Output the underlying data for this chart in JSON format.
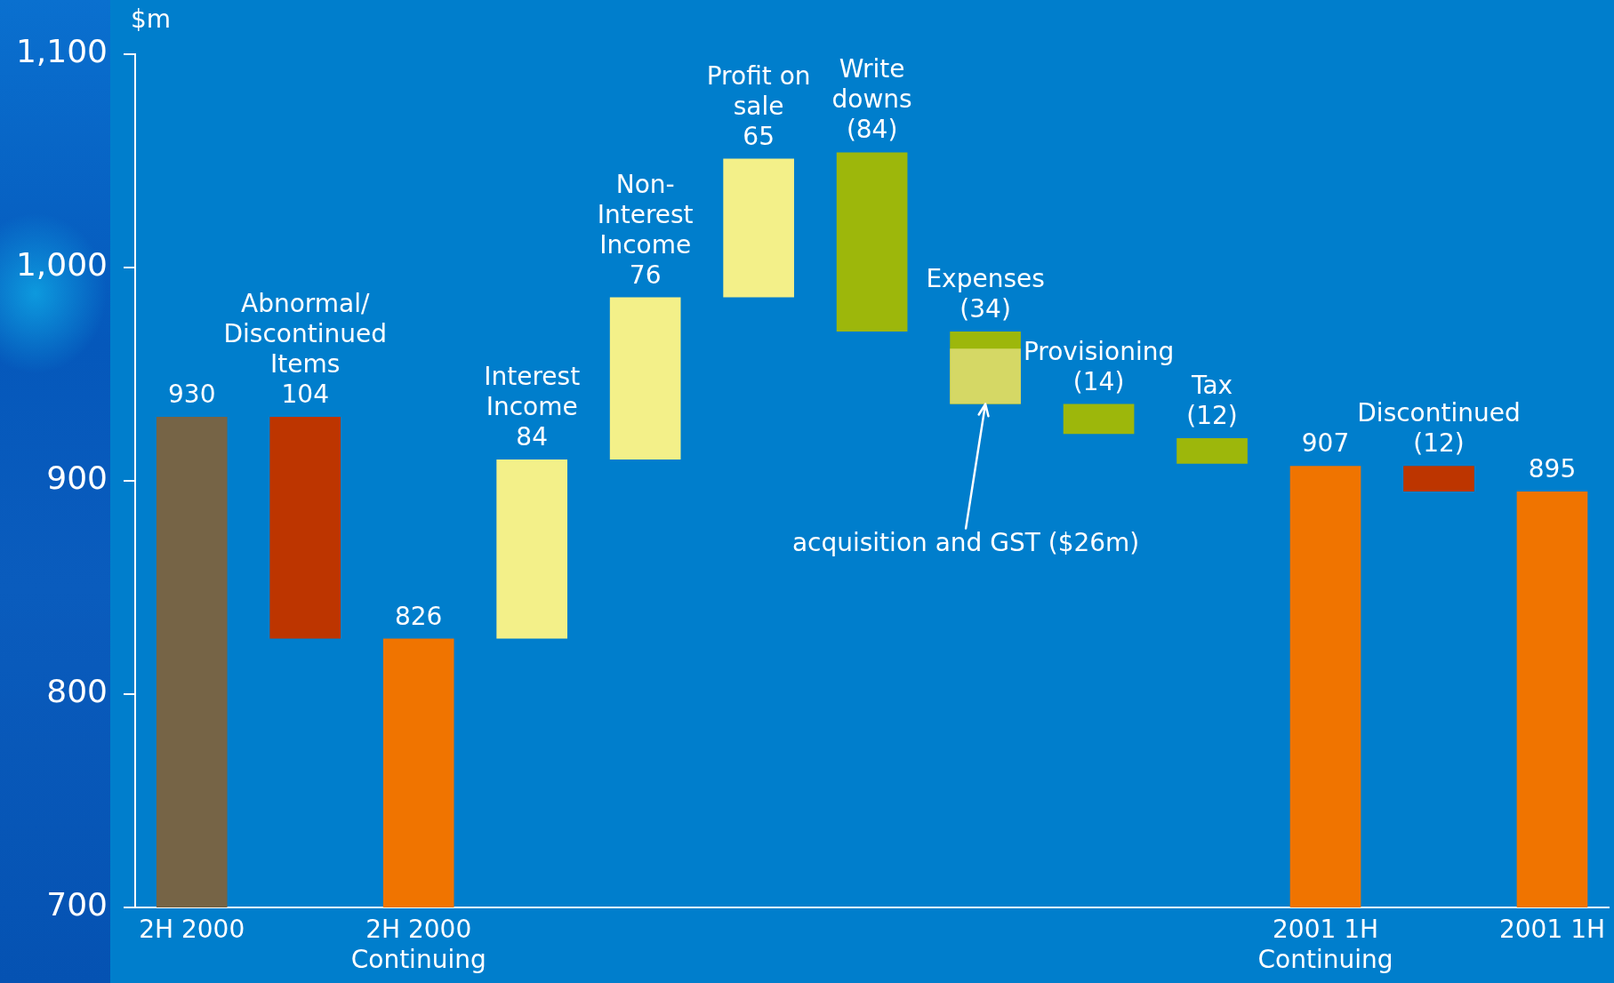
{
  "chart_data": {
    "type": "bar",
    "ylabel": "$m",
    "categories": [
      "2H 2000",
      "Abnormal/Discontinued Items",
      "2H 2000 Continuing",
      "Interest Income",
      "Non-Interest Income",
      "Profit on sale",
      "Write downs",
      "Expenses",
      "Provisioning",
      "Tax",
      "2001 1H Continuing",
      "Discontinued",
      "2001 1H"
    ],
    "series": [
      {
        "values": [
          930,
          104,
          826,
          84,
          76,
          65,
          -84,
          -34,
          -14,
          -12,
          907,
          -12,
          895
        ],
        "base": [
          null,
          826,
          null,
          826,
          910,
          986,
          1054,
          970,
          936,
          920,
          null,
          907,
          null
        ],
        "colors": [
          "#766446",
          "#bd3500",
          "#f07400",
          "#f3f089",
          "#f3f089",
          "#f3f089",
          "#9db70b",
          "#9db70b",
          "#9db70b",
          "#9db70b",
          "#f07400",
          "#bd3500",
          "#f07400"
        ],
        "value_labels": [
          "930",
          "104",
          "826",
          "84",
          "76",
          "65",
          "(84)",
          "(34)",
          "(14)",
          "(12)",
          "907",
          "(12)",
          "895"
        ]
      },
      {
        "values": [
          null,
          null,
          null,
          null,
          null,
          null,
          null,
          -26,
          null,
          null,
          null,
          null,
          null
        ],
        "base": [
          null,
          null,
          null,
          null,
          null,
          null,
          null,
          962,
          null,
          null,
          null,
          null,
          null
        ],
        "color": "#d5d865"
      }
    ],
    "ylim": [
      700,
      1100
    ],
    "yticks": [
      700,
      800,
      900,
      {
        "value": 1000,
        "label": "1,000"
      },
      {
        "value": 1100,
        "label": "1,100"
      }
    ],
    "annotations": [
      {
        "text": "acquisition and GST ($26m)",
        "x": "Expenses",
        "y": 936
      }
    ]
  }
}
